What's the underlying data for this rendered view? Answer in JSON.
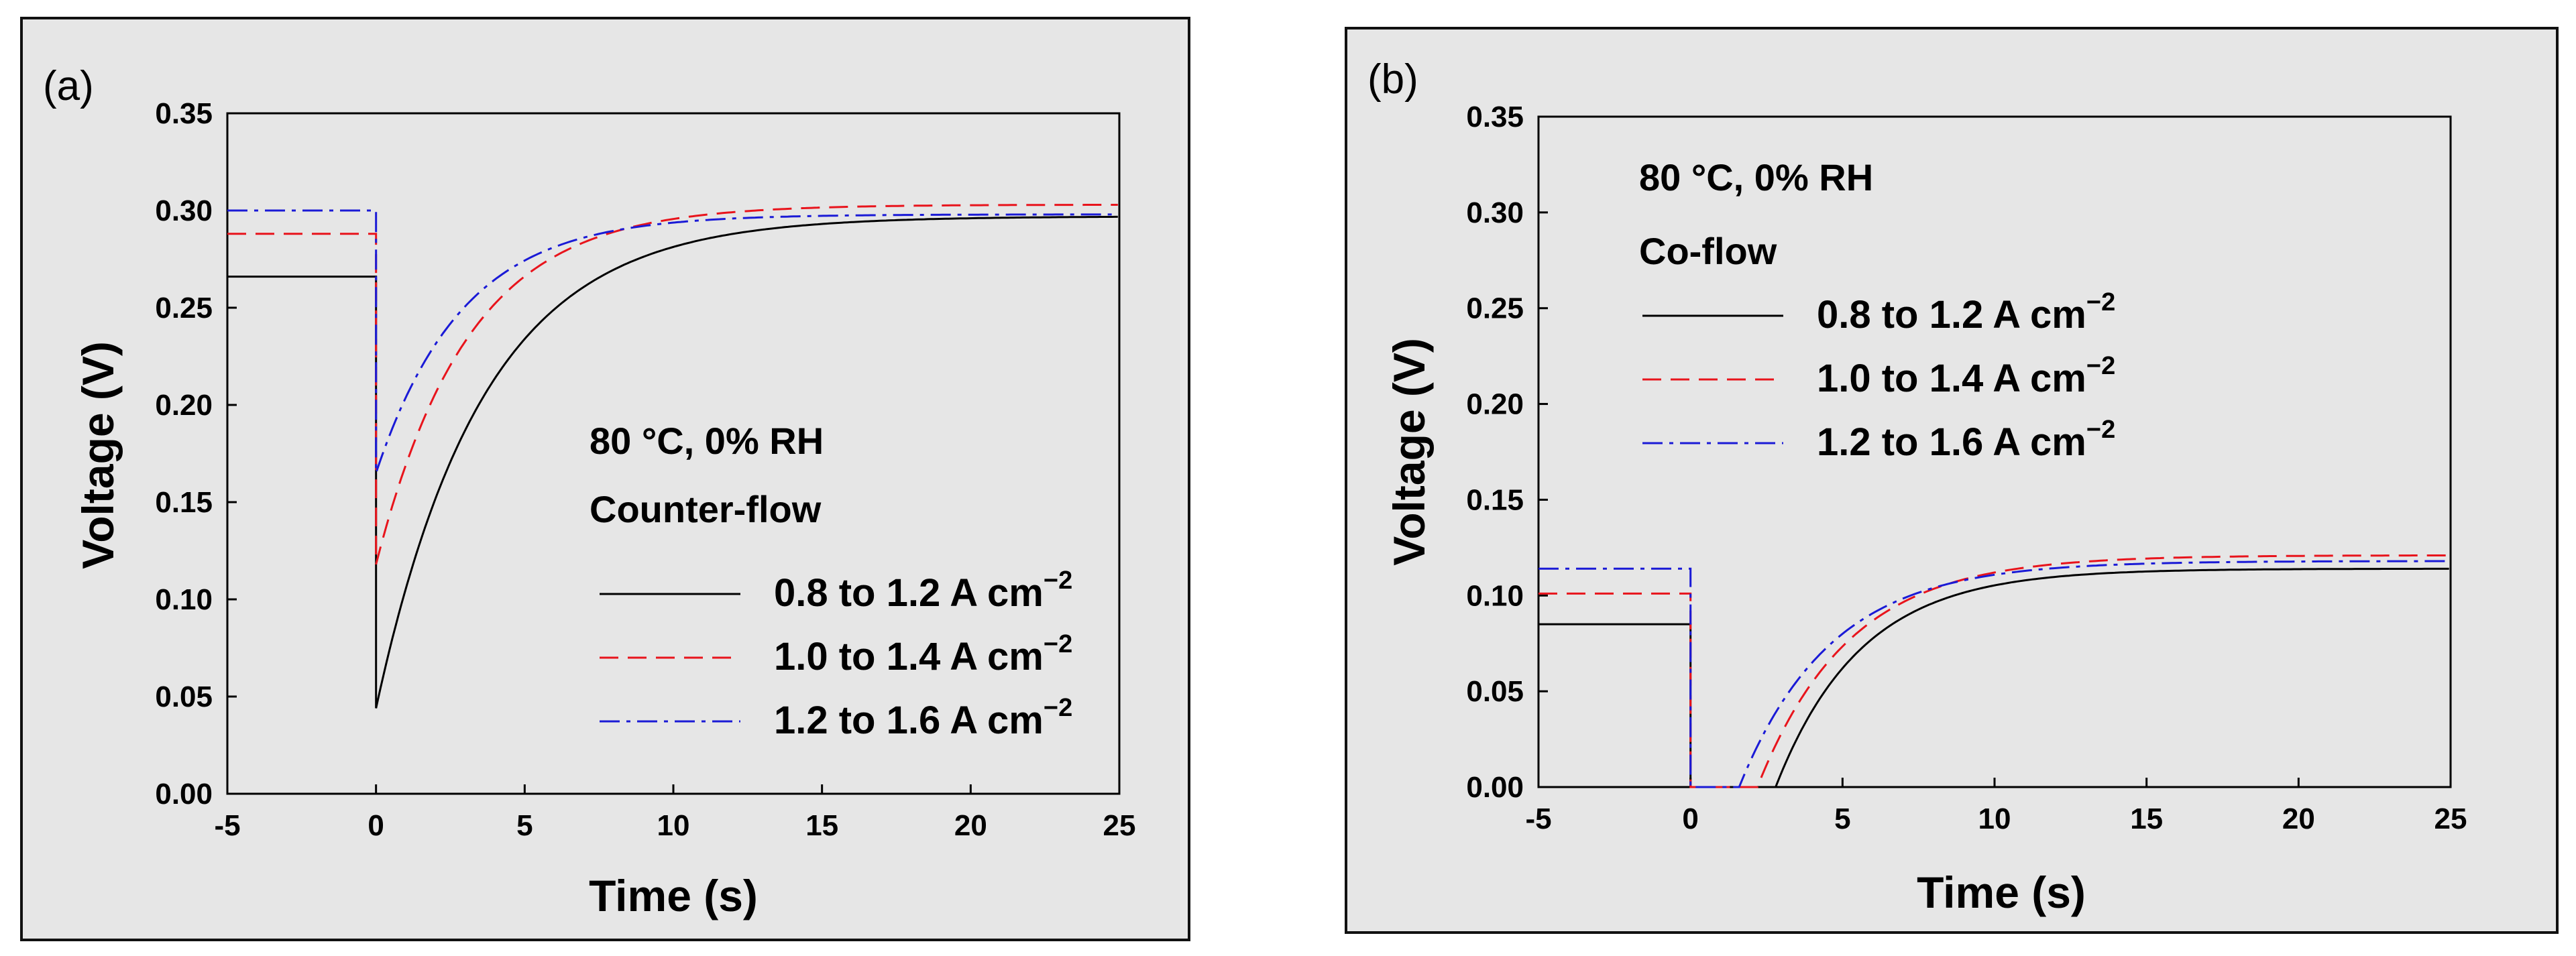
{
  "chart_data": [
    {
      "type": "line",
      "panel_label": "(a)",
      "xlabel": "Time (s)",
      "ylabel": "Voltage (V)",
      "xlim": [
        -5,
        25
      ],
      "ylim": [
        0,
        0.35
      ],
      "xticks": [
        -5,
        0,
        5,
        10,
        15,
        20,
        25
      ],
      "yticks": [
        0.0,
        0.05,
        0.1,
        0.15,
        0.2,
        0.25,
        0.3,
        0.35
      ],
      "x_tick_labels": [
        "-5",
        "0",
        "5",
        "10",
        "15",
        "20",
        "25"
      ],
      "y_tick_labels": [
        "0.00",
        "0.05",
        "0.10",
        "0.15",
        "0.20",
        "0.25",
        "0.30",
        "0.35"
      ],
      "annotations": [
        "80 °C, 0% RH",
        "Counter-flow"
      ],
      "series": [
        {
          "name": "0.8 to 1.2 A cm−2",
          "style": "solid",
          "color": "#000000",
          "initial": 0.266,
          "min": 0.044,
          "final": 0.297,
          "tau": 3.6
        },
        {
          "name": "1.0 to 1.4 A cm−2",
          "style": "dashed",
          "color": "#e8141c",
          "initial": 0.288,
          "min": 0.118,
          "final": 0.303,
          "tau": 3.1
        },
        {
          "name": "1.2 to 1.6 A cm−2",
          "style": "dashdot",
          "color": "#1a1ad6",
          "initial": 0.3,
          "min": 0.165,
          "final": 0.298,
          "tau": 2.9
        }
      ]
    },
    {
      "type": "line",
      "panel_label": "(b)",
      "xlabel": "Time (s)",
      "ylabel": "Voltage (V)",
      "xlim": [
        -5,
        25
      ],
      "ylim": [
        0,
        0.35
      ],
      "xticks": [
        -5,
        0,
        5,
        10,
        15,
        20,
        25
      ],
      "yticks": [
        0.0,
        0.05,
        0.1,
        0.15,
        0.2,
        0.25,
        0.3,
        0.35
      ],
      "x_tick_labels": [
        "-5",
        "0",
        "5",
        "10",
        "15",
        "20",
        "25"
      ],
      "y_tick_labels": [
        "0.00",
        "0.05",
        "0.10",
        "0.15",
        "0.20",
        "0.25",
        "0.30",
        "0.35"
      ],
      "annotations": [
        "80 °C, 0% RH",
        "Co-flow"
      ],
      "series": [
        {
          "name": "0.8 to 1.2 A cm−2",
          "style": "solid",
          "color": "#000000",
          "initial": 0.085,
          "zero_until": 2.8,
          "final": 0.114,
          "tau": 2.8
        },
        {
          "name": "1.0 to 1.4 A cm−2",
          "style": "dashed",
          "color": "#e8141c",
          "initial": 0.101,
          "zero_until": 2.2,
          "final": 0.121,
          "tau": 3.0
        },
        {
          "name": "1.2 to 1.6 A cm−2",
          "style": "dashdot",
          "color": "#1a1ad6",
          "initial": 0.114,
          "zero_until": 1.6,
          "final": 0.118,
          "tau": 3.0
        }
      ]
    }
  ]
}
